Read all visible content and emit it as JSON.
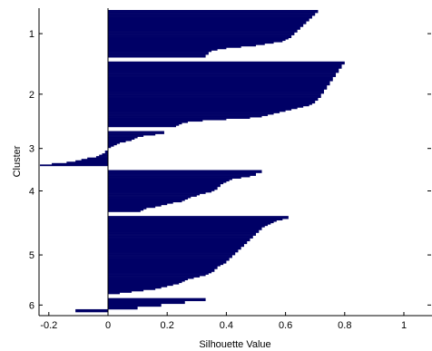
{
  "chart_data": {
    "type": "bar",
    "orientation": "horizontal",
    "title": "",
    "xlabel": "Silhouette Value",
    "ylabel": "Cluster",
    "xlim": [
      -0.2,
      1.0
    ],
    "x_ticks": [
      "-0.2",
      "0",
      "0.2",
      "0.4",
      "0.6",
      "0.8",
      "1"
    ],
    "grid": false,
    "legend": "none",
    "bar_color": "#000066",
    "clusters": [
      {
        "label": "1",
        "values": [
          0.71,
          0.71,
          0.7,
          0.7,
          0.69,
          0.69,
          0.68,
          0.68,
          0.67,
          0.67,
          0.66,
          0.66,
          0.65,
          0.65,
          0.64,
          0.64,
          0.63,
          0.63,
          0.62,
          0.62,
          0.61,
          0.6,
          0.59,
          0.56,
          0.53,
          0.5,
          0.45,
          0.4,
          0.37,
          0.35,
          0.34,
          0.34,
          0.33,
          0.33
        ]
      },
      {
        "label": "2",
        "values": [
          0.8,
          0.8,
          0.79,
          0.79,
          0.79,
          0.78,
          0.78,
          0.78,
          0.77,
          0.77,
          0.77,
          0.76,
          0.76,
          0.76,
          0.75,
          0.75,
          0.75,
          0.74,
          0.74,
          0.74,
          0.73,
          0.73,
          0.73,
          0.72,
          0.72,
          0.72,
          0.71,
          0.71,
          0.7,
          0.7,
          0.69,
          0.68,
          0.66,
          0.64,
          0.62,
          0.6,
          0.58,
          0.56,
          0.54,
          0.52,
          0.48,
          0.4,
          0.32,
          0.27,
          0.25,
          0.24,
          0.23
        ]
      },
      {
        "label": "3",
        "values": [
          0.19,
          0.19,
          0.16,
          0.12,
          0.1,
          0.09,
          0.08,
          0.06,
          0.04,
          0.03,
          0.02,
          0.01,
          0,
          0,
          -0.01,
          -0.01,
          -0.02,
          -0.03,
          -0.04,
          -0.07,
          -0.09,
          -0.11,
          -0.14,
          -0.19,
          -0.23
        ]
      },
      {
        "label": "4",
        "values": [
          0.52,
          0.52,
          0.5,
          0.5,
          0.48,
          0.45,
          0.42,
          0.41,
          0.4,
          0.39,
          0.38,
          0.38,
          0.37,
          0.37,
          0.36,
          0.35,
          0.33,
          0.31,
          0.3,
          0.28,
          0.27,
          0.26,
          0.25,
          0.22,
          0.2,
          0.18,
          0.16,
          0.13,
          0.12,
          0.11
        ]
      },
      {
        "label": "5",
        "values": [
          0.61,
          0.61,
          0.59,
          0.57,
          0.56,
          0.55,
          0.54,
          0.53,
          0.52,
          0.52,
          0.51,
          0.51,
          0.5,
          0.5,
          0.49,
          0.49,
          0.48,
          0.48,
          0.47,
          0.47,
          0.46,
          0.46,
          0.45,
          0.45,
          0.44,
          0.44,
          0.43,
          0.43,
          0.42,
          0.42,
          0.41,
          0.41,
          0.4,
          0.4,
          0.39,
          0.38,
          0.37,
          0.37,
          0.36,
          0.36,
          0.35,
          0.34,
          0.33,
          0.31,
          0.29,
          0.27,
          0.26,
          0.25,
          0.24,
          0.22,
          0.2,
          0.18,
          0.16,
          0.12,
          0.08,
          0.04
        ]
      },
      {
        "label": "6",
        "values": [
          0.33,
          0.33,
          0.26,
          0.26,
          0.18,
          0.18,
          0.1,
          0.1,
          -0.11,
          -0.11
        ]
      }
    ]
  }
}
